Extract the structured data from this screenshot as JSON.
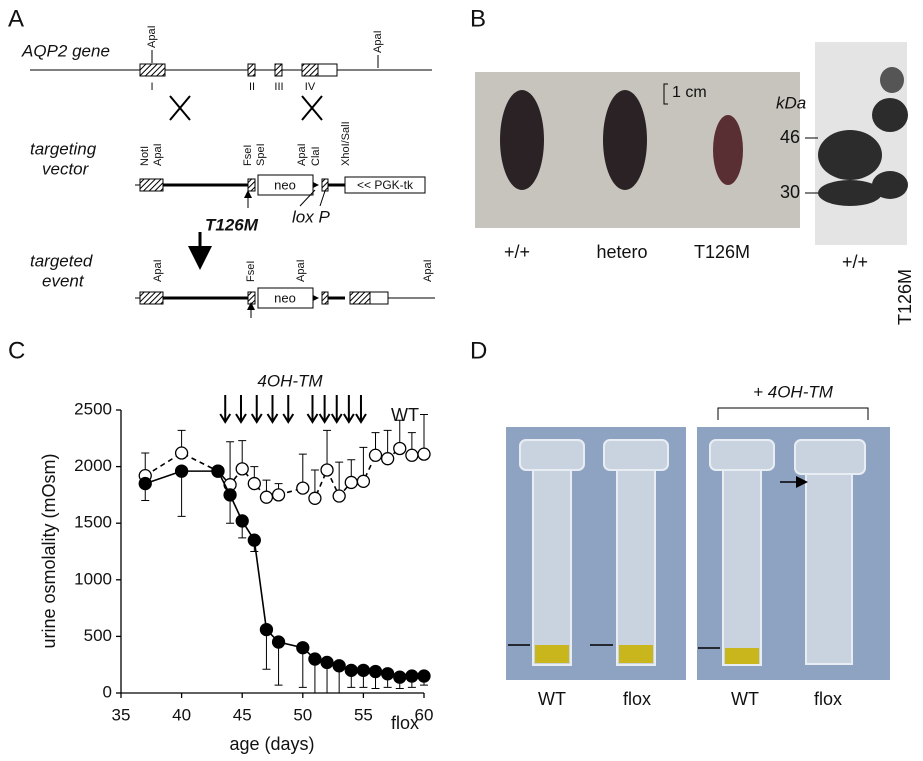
{
  "panels": {
    "a": "A",
    "b": "B",
    "c": "C",
    "d": "D"
  },
  "diagram": {
    "gene_label": "AQP2 gene",
    "vector_label": [
      "targeting",
      "vector"
    ],
    "event_label": [
      "targeted",
      "event"
    ],
    "gene_sites": [
      "ApaI",
      "ApaI"
    ],
    "exons": [
      "I",
      "II",
      "III",
      "IV"
    ],
    "vector_sites": [
      "NotI",
      "ApaI",
      "FseI",
      "SpeI",
      "ApaI",
      "ClaI",
      "XhoI/SalI"
    ],
    "neo": "neo",
    "tk": "<< PGK-tk",
    "mutation": "T126M",
    "lox": "lox P",
    "event_sites": [
      "ApaI",
      "FseI",
      "ApaI",
      "ApaI"
    ],
    "event_neo": "neo"
  },
  "photo_b": {
    "scale": "1 cm",
    "labels": [
      "+/+",
      "hetero",
      "T126M"
    ],
    "blot_unit": "kDa",
    "blot_markers": [
      "46",
      "30"
    ],
    "blot_lanes": [
      "+/+",
      "T126M"
    ]
  },
  "photo_d": {
    "treatment": "+ 4OH-TM",
    "labels": [
      "WT",
      "flox",
      "WT",
      "flox"
    ]
  },
  "chart_data": {
    "type": "line",
    "annotation": "4OH-TM",
    "x_label": "age (days)",
    "y_label": "urine osmolality (mOsm)",
    "xlim": [
      35,
      60
    ],
    "xticks": [
      35,
      40,
      45,
      50,
      55,
      60
    ],
    "ylim": [
      0,
      2500
    ],
    "yticks": [
      0,
      500,
      1000,
      1500,
      2000,
      2500
    ],
    "treatment_x": [
      43.6,
      44.9,
      46.2,
      47.5,
      48.8,
      50.8,
      51.8,
      52.8,
      53.8,
      54.8
    ],
    "x": [
      37,
      40,
      43,
      44,
      45,
      46,
      47,
      48,
      50,
      51,
      52,
      53,
      54,
      55,
      56,
      57,
      58,
      59,
      60
    ],
    "series": [
      {
        "name": "WT",
        "color": "#ffffff",
        "dashed": true,
        "error_direction": "up",
        "values": [
          1920,
          2120,
          1960,
          1840,
          1980,
          1850,
          1730,
          1750,
          1810,
          1720,
          1970,
          1740,
          1860,
          1870,
          2100,
          2070,
          2160,
          2100,
          2110
        ],
        "errors": [
          200,
          200,
          0,
          380,
          250,
          150,
          150,
          100,
          300,
          250,
          350,
          300,
          200,
          300,
          200,
          250,
          250,
          200,
          350
        ]
      },
      {
        "name": "flox",
        "color": "#000000",
        "dashed": false,
        "error_direction": "down",
        "values": [
          1850,
          1960,
          1960,
          1750,
          1520,
          1350,
          560,
          450,
          400,
          300,
          270,
          240,
          200,
          200,
          190,
          170,
          140,
          150,
          150
        ],
        "errors": [
          150,
          400,
          0,
          250,
          150,
          100,
          350,
          380,
          350,
          300,
          270,
          240,
          150,
          150,
          150,
          120,
          100,
          100,
          80
        ]
      }
    ]
  }
}
